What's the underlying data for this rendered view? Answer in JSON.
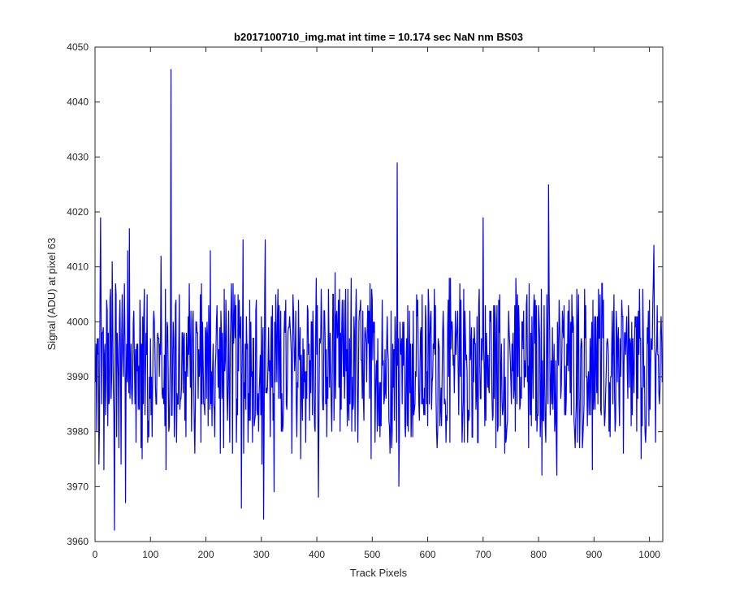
{
  "chart_data": {
    "type": "line",
    "title": "b2017100710_img.mat int time = 10.174 sec  NaN nm BS03",
    "xlabel": "Track Pixels",
    "ylabel": "Signal (ADU) at pixel 63",
    "xlim": [
      0,
      1024
    ],
    "ylim": [
      3960,
      4050
    ],
    "x_ticks": [
      0,
      100,
      200,
      300,
      400,
      500,
      600,
      700,
      800,
      900,
      1000
    ],
    "y_ticks": [
      3960,
      3970,
      3980,
      3990,
      4000,
      4010,
      4020,
      4030,
      4040,
      4050
    ],
    "grid": false,
    "legend": "none",
    "series": [
      {
        "color": "#0000ff",
        "x_start": 1,
        "x_step": 1,
        "noise_baseline": 3992,
        "noise_range": [
          3973,
          4008
        ],
        "points": [
          [
            1,
            3989
          ],
          [
            3,
            3980
          ],
          [
            5,
            3994
          ],
          [
            7,
            3974
          ],
          [
            9,
            4004
          ],
          [
            10,
            4019
          ],
          [
            12,
            3985
          ],
          [
            14,
            3998
          ],
          [
            16,
            3973
          ],
          [
            18,
            3996
          ],
          [
            20,
            3988
          ],
          [
            22,
            4002
          ],
          [
            25,
            3985
          ],
          [
            27,
            4004
          ],
          [
            29,
            3986
          ],
          [
            31,
            4011
          ],
          [
            33,
            3988
          ],
          [
            35,
            3962
          ],
          [
            37,
            4007
          ],
          [
            39,
            3979
          ],
          [
            41,
            3995
          ],
          [
            43,
            3977
          ],
          [
            45,
            4004
          ],
          [
            47,
            3974
          ],
          [
            49,
            4005
          ],
          [
            51,
            3990
          ],
          [
            53,
            4007
          ],
          [
            55,
            3967
          ],
          [
            57,
            3996
          ],
          [
            59,
            4013
          ],
          [
            61,
            3987
          ],
          [
            62,
            4017
          ],
          [
            64,
            3992
          ],
          [
            67,
            3985
          ],
          [
            70,
            4002
          ],
          [
            72,
            3985
          ],
          [
            75,
            3996
          ],
          [
            78,
            3984
          ],
          [
            82,
            3999
          ],
          [
            85,
            3975
          ],
          [
            88,
            4001
          ],
          [
            91,
            3990
          ],
          [
            94,
            4005
          ],
          [
            97,
            3979
          ],
          [
            100,
            3997
          ],
          [
            104,
            3989
          ],
          [
            107,
            4000
          ],
          [
            110,
            3985
          ],
          [
            113,
            3998
          ],
          [
            116,
            3990
          ],
          [
            119,
            4012
          ],
          [
            122,
            3986
          ],
          [
            125,
            3994
          ],
          [
            128,
            3973
          ],
          [
            131,
            3999
          ],
          [
            134,
            3981
          ],
          [
            137,
            4046
          ],
          [
            140,
            3993
          ],
          [
            143,
            3979
          ],
          [
            146,
            4004
          ],
          [
            149,
            3985
          ],
          [
            152,
            4005
          ],
          [
            156,
            3988
          ],
          [
            160,
            3997
          ],
          [
            164,
            3979
          ],
          [
            168,
            4001
          ],
          [
            172,
            3988
          ],
          [
            176,
            4000
          ],
          [
            180,
            3976
          ],
          [
            184,
            3998
          ],
          [
            188,
            3990
          ],
          [
            192,
            4007
          ],
          [
            196,
            3985
          ],
          [
            200,
            3998
          ],
          [
            204,
            3981
          ],
          [
            208,
            4013
          ],
          [
            212,
            3991
          ],
          [
            216,
            3979
          ],
          [
            220,
            4003
          ],
          [
            224,
            3986
          ],
          [
            228,
            3998
          ],
          [
            232,
            3977
          ],
          [
            236,
            4004
          ],
          [
            240,
            3989
          ],
          [
            244,
            3997
          ],
          [
            248,
            3976
          ],
          [
            252,
            4005
          ],
          [
            256,
            3986
          ],
          [
            261,
            3998
          ],
          [
            264,
            3966
          ],
          [
            267,
            4015
          ],
          [
            270,
            3986
          ],
          [
            273,
            4001
          ],
          [
            276,
            3978
          ],
          [
            279,
            4004
          ],
          [
            282,
            3990
          ],
          [
            285,
            3997
          ],
          [
            288,
            3982
          ],
          [
            291,
            4004
          ],
          [
            294,
            3987
          ],
          [
            298,
            3994
          ],
          [
            301,
            3974
          ],
          [
            304,
            3964
          ],
          [
            307,
            4015
          ],
          [
            310,
            3987
          ],
          [
            313,
            3999
          ],
          [
            316,
            3979
          ],
          [
            320,
            4003
          ],
          [
            323,
            3969
          ],
          [
            327,
            3997
          ],
          [
            331,
            3986
          ],
          [
            335,
            4002
          ],
          [
            339,
            3981
          ],
          [
            343,
            3998
          ],
          [
            347,
            3990
          ],
          [
            351,
            4001
          ],
          [
            355,
            3976
          ],
          [
            359,
            3996
          ],
          [
            363,
            3985
          ],
          [
            367,
            4004
          ],
          [
            371,
            3975
          ],
          [
            375,
            3997
          ],
          [
            379,
            3991
          ],
          [
            383,
            4003
          ],
          [
            387,
            3982
          ],
          [
            391,
            4000
          ],
          [
            395,
            3987
          ],
          [
            399,
            4008
          ],
          [
            403,
            3968
          ],
          [
            406,
            3996
          ],
          [
            410,
            3987
          ],
          [
            414,
            4002
          ],
          [
            418,
            3979
          ],
          [
            422,
            3997
          ],
          [
            426,
            3985
          ],
          [
            430,
            4005
          ],
          [
            434,
            3986
          ],
          [
            438,
            3998
          ],
          [
            442,
            3980
          ],
          [
            446,
            4004
          ],
          [
            450,
            3986
          ],
          [
            454,
            3995
          ],
          [
            458,
            3982
          ],
          [
            462,
            4008
          ],
          [
            466,
            3985
          ],
          [
            470,
            4000
          ],
          [
            474,
            3978
          ],
          [
            478,
            4002
          ],
          [
            482,
            3986
          ],
          [
            486,
            3996
          ],
          [
            490,
            3989
          ],
          [
            494,
            4002
          ],
          [
            498,
            3975
          ],
          [
            502,
            4000
          ],
          [
            506,
            3987
          ],
          [
            510,
            3997
          ],
          [
            514,
            3979
          ],
          [
            518,
            4004
          ],
          [
            522,
            3986
          ],
          [
            526,
            3996
          ],
          [
            530,
            3982
          ],
          [
            534,
            4002
          ],
          [
            538,
            3988
          ],
          [
            542,
            3998
          ],
          [
            545,
            4029
          ],
          [
            548,
            3970
          ],
          [
            551,
            3995
          ],
          [
            554,
            3985
          ],
          [
            557,
            4000
          ],
          [
            560,
            3979
          ],
          [
            564,
            4003
          ],
          [
            568,
            3987
          ],
          [
            572,
            3996
          ],
          [
            576,
            3984
          ],
          [
            580,
            4005
          ],
          [
            584,
            3985
          ],
          [
            588,
            3999
          ],
          [
            592,
            3986
          ],
          [
            596,
            4003
          ],
          [
            600,
            3981
          ],
          [
            604,
            3997
          ],
          [
            608,
            3989
          ],
          [
            612,
            4006
          ],
          [
            616,
            3980
          ],
          [
            620,
            3996
          ],
          [
            624,
            3988
          ],
          [
            628,
            4002
          ],
          [
            632,
            3985
          ],
          [
            636,
            3999
          ],
          [
            640,
            3978
          ],
          [
            644,
            4000
          ],
          [
            648,
            3987
          ],
          [
            652,
            3997
          ],
          [
            656,
            3983
          ],
          [
            660,
            4004
          ],
          [
            664,
            3986
          ],
          [
            668,
            3998
          ],
          [
            672,
            3978
          ],
          [
            676,
            4002
          ],
          [
            680,
            3979
          ],
          [
            684,
            3999
          ],
          [
            688,
            3987
          ],
          [
            692,
            4003
          ],
          [
            696,
            3986
          ],
          [
            700,
            4019
          ],
          [
            703,
            3981
          ],
          [
            706,
            3998
          ],
          [
            710,
            3988
          ],
          [
            714,
            4002
          ],
          [
            718,
            3983
          ],
          [
            722,
            4000
          ],
          [
            726,
            3980
          ],
          [
            730,
            4005
          ],
          [
            734,
            3986
          ],
          [
            738,
            3997
          ],
          [
            742,
            3979
          ],
          [
            746,
            4002
          ],
          [
            750,
            3989
          ],
          [
            754,
            3998
          ],
          [
            758,
            3980
          ],
          [
            762,
            4005
          ],
          [
            766,
            3984
          ],
          [
            770,
            4000
          ],
          [
            774,
            3988
          ],
          [
            778,
            4003
          ],
          [
            782,
            3977
          ],
          [
            786,
            3998
          ],
          [
            790,
            3986
          ],
          [
            794,
            4004
          ],
          [
            798,
            3983
          ],
          [
            802,
            3997
          ],
          [
            806,
            3972
          ],
          [
            810,
            4003
          ],
          [
            814,
            3990
          ],
          [
            818,
            4025
          ],
          [
            821,
            3983
          ],
          [
            825,
            3999
          ],
          [
            829,
            3980
          ],
          [
            833,
            3972
          ],
          [
            837,
            4004
          ],
          [
            841,
            3988
          ],
          [
            845,
            3997
          ],
          [
            849,
            3983
          ],
          [
            853,
            4002
          ],
          [
            857,
            3987
          ],
          [
            861,
            3998
          ],
          [
            865,
            3980
          ],
          [
            869,
            4006
          ],
          [
            873,
            3986
          ],
          [
            877,
            3997
          ],
          [
            881,
            3982
          ],
          [
            885,
            4003
          ],
          [
            889,
            3989
          ],
          [
            893,
            3997
          ],
          [
            897,
            3973
          ],
          [
            901,
            4001
          ],
          [
            905,
            3987
          ],
          [
            909,
            3997
          ],
          [
            913,
            3983
          ],
          [
            917,
            4004
          ],
          [
            921,
            3987
          ],
          [
            925,
            3996
          ],
          [
            929,
            3979
          ],
          [
            933,
            4002
          ],
          [
            937,
            3987
          ],
          [
            941,
            3999
          ],
          [
            945,
            3986
          ],
          [
            949,
            3995
          ],
          [
            953,
            3976
          ],
          [
            957,
            3994
          ],
          [
            961,
            3986
          ],
          [
            965,
            3997
          ],
          [
            969,
            3983
          ],
          [
            973,
            3996
          ],
          [
            977,
            3980
          ],
          [
            981,
            3994
          ],
          [
            985,
            3975
          ],
          [
            989,
            3997
          ],
          [
            993,
            3978
          ],
          [
            997,
            3996
          ],
          [
            1001,
            3984
          ],
          [
            1005,
            3995
          ],
          [
            1008,
            4014
          ],
          [
            1011,
            3978
          ],
          [
            1014,
            4003
          ],
          [
            1017,
            3987
          ],
          [
            1020,
            3998
          ],
          [
            1023,
            3989
          ]
        ]
      }
    ]
  }
}
